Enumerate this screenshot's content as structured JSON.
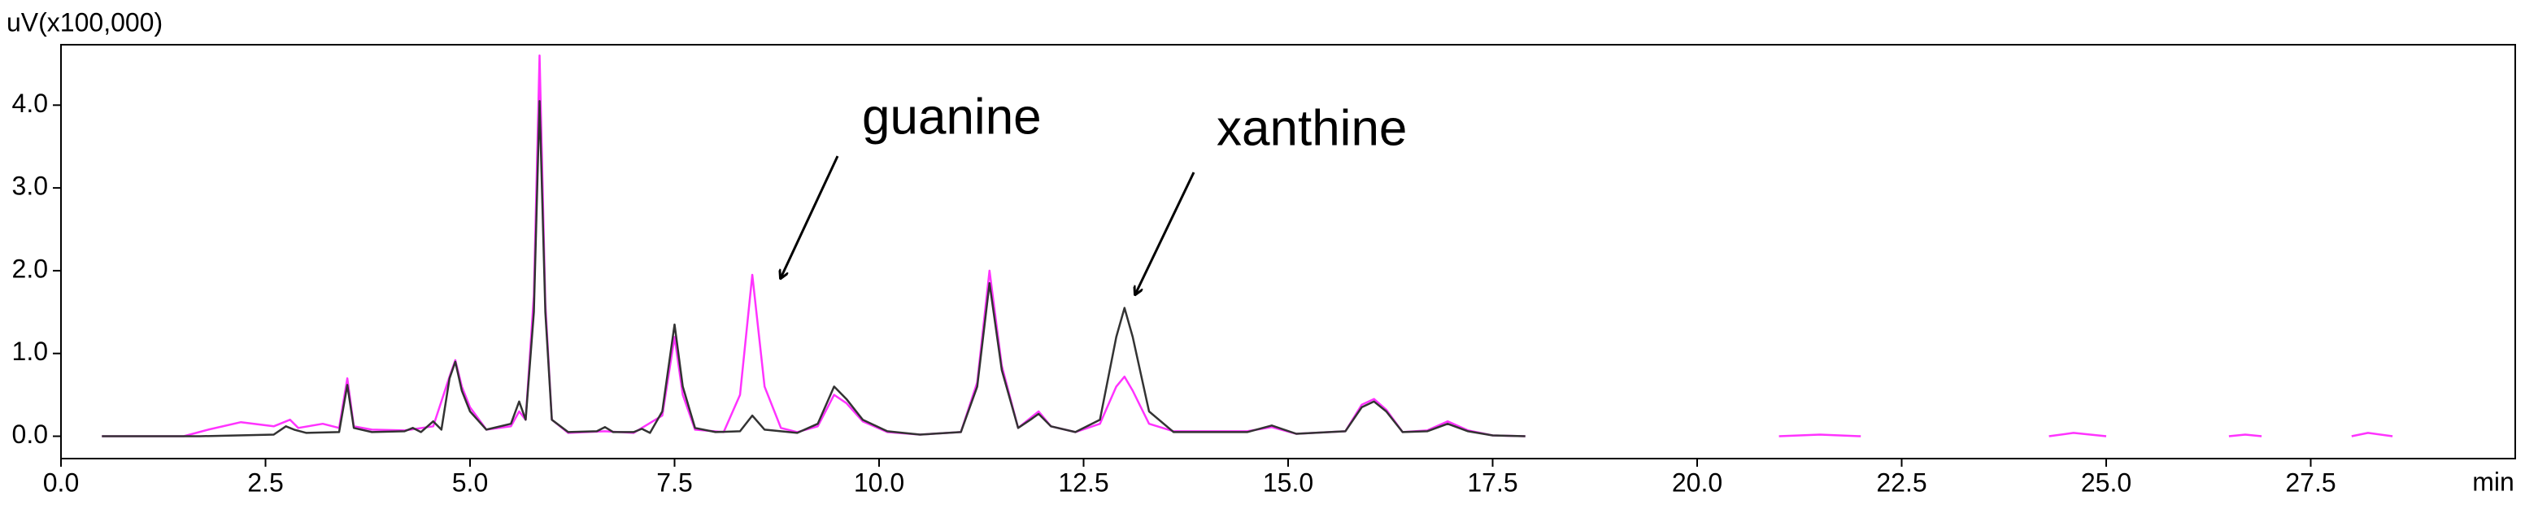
{
  "chart_data": {
    "type": "line",
    "y_label": "uV(x100,000)",
    "x_label": "min",
    "xlim": [
      0,
      30
    ],
    "ylim": [
      -0.27,
      4.73
    ],
    "xticks": [
      {
        "value": 0,
        "label": "0.0"
      },
      2.5,
      {
        "value": 5,
        "label": "5.0"
      },
      7.5,
      {
        "value": 10,
        "label": "10.0"
      },
      12.5,
      {
        "value": 15,
        "label": "15.0"
      },
      17.5,
      {
        "value": 20,
        "label": "20.0"
      },
      22.5,
      {
        "value": 25,
        "label": "25.0"
      },
      27.5
    ],
    "yticks": [
      {
        "value": 0,
        "label": "0.0"
      },
      {
        "value": 1,
        "label": "1.0"
      },
      {
        "value": 2,
        "label": "2.0"
      },
      {
        "value": 3,
        "label": "3.0"
      },
      {
        "value": 4,
        "label": "4.0"
      }
    ],
    "annotations": [
      "guanine",
      "xanthine"
    ],
    "series": [
      {
        "color": "#ff33ff",
        "x": [
          0.5,
          1.5,
          1.8,
          2.2,
          2.6,
          2.8,
          2.9,
          3.2,
          3.4,
          3.5,
          3.58,
          3.8,
          4.2,
          4.55,
          4.75,
          4.82,
          4.9,
          5.0,
          5.2,
          5.5,
          5.6,
          5.68,
          5.78,
          5.85,
          5.92,
          6.0,
          6.2,
          6.65,
          7.0,
          7.35,
          7.5,
          7.6,
          7.75,
          8.1,
          8.3,
          8.45,
          8.6,
          8.8,
          9.0,
          9.25,
          9.45,
          9.6,
          9.8,
          10.1,
          10.5,
          11.0,
          11.2,
          11.35,
          11.5,
          11.7,
          11.85,
          11.95,
          12.1,
          12.4,
          12.7,
          12.9,
          13.0,
          13.1,
          13.3,
          13.6,
          14.5,
          14.8,
          15.1,
          15.7,
          15.9,
          16.05,
          16.2,
          16.4,
          16.7,
          16.95,
          17.2,
          17.5,
          17.9,
          null,
          21.0,
          21.5,
          22.0,
          null,
          24.3,
          24.6,
          25.0,
          null,
          26.5,
          26.7,
          26.9,
          null,
          28.0,
          28.2,
          28.5
        ],
        "values": [
          0,
          0,
          0.08,
          0.17,
          0.12,
          0.2,
          0.1,
          0.15,
          0.1,
          0.7,
          0.12,
          0.08,
          0.07,
          0.12,
          0.72,
          0.92,
          0.6,
          0.35,
          0.08,
          0.12,
          0.3,
          0.2,
          1.7,
          4.6,
          1.6,
          0.2,
          0.04,
          0.06,
          0.04,
          0.25,
          1.2,
          0.5,
          0.08,
          0.05,
          0.5,
          1.95,
          0.6,
          0.1,
          0.05,
          0.12,
          0.5,
          0.4,
          0.18,
          0.05,
          0.02,
          0.05,
          0.65,
          2.0,
          0.85,
          0.1,
          0.22,
          0.3,
          0.12,
          0.05,
          0.15,
          0.6,
          0.72,
          0.55,
          0.15,
          0.06,
          0.06,
          0.11,
          0.03,
          0.06,
          0.38,
          0.45,
          0.32,
          0.05,
          0.07,
          0.18,
          0.07,
          0.01,
          0,
          null,
          0,
          0.02,
          0,
          null,
          0,
          0.04,
          0,
          null,
          0,
          0.02,
          0,
          null,
          0,
          0.04,
          0
        ]
      },
      {
        "color": "#333333",
        "x": [
          0.5,
          1.7,
          2.6,
          2.75,
          2.85,
          3.0,
          3.4,
          3.5,
          3.58,
          3.8,
          4.2,
          4.3,
          4.4,
          4.55,
          4.65,
          4.75,
          4.82,
          4.9,
          5.0,
          5.2,
          5.5,
          5.6,
          5.68,
          5.78,
          5.85,
          5.92,
          6.0,
          6.2,
          6.55,
          6.65,
          6.75,
          7.0,
          7.1,
          7.2,
          7.35,
          7.5,
          7.6,
          7.75,
          8.0,
          8.3,
          8.45,
          8.6,
          9.0,
          9.25,
          9.45,
          9.6,
          9.8,
          10.1,
          10.5,
          11.0,
          11.2,
          11.35,
          11.5,
          11.7,
          11.85,
          11.95,
          12.1,
          12.4,
          12.7,
          12.9,
          13.0,
          13.1,
          13.3,
          13.6,
          14.5,
          14.8,
          15.1,
          15.7,
          15.9,
          16.05,
          16.2,
          16.4,
          16.7,
          16.95,
          17.2,
          17.5,
          17.9
        ],
        "values": [
          0,
          0,
          0.02,
          0.12,
          0.08,
          0.04,
          0.05,
          0.62,
          0.1,
          0.05,
          0.06,
          0.1,
          0.05,
          0.18,
          0.08,
          0.7,
          0.9,
          0.55,
          0.3,
          0.08,
          0.15,
          0.42,
          0.2,
          1.5,
          4.05,
          1.5,
          0.2,
          0.05,
          0.06,
          0.11,
          0.05,
          0.05,
          0.09,
          0.04,
          0.3,
          1.35,
          0.6,
          0.1,
          0.05,
          0.06,
          0.25,
          0.08,
          0.04,
          0.15,
          0.6,
          0.45,
          0.2,
          0.06,
          0.02,
          0.05,
          0.6,
          1.85,
          0.8,
          0.1,
          0.2,
          0.27,
          0.12,
          0.05,
          0.2,
          1.2,
          1.55,
          1.2,
          0.3,
          0.05,
          0.05,
          0.13,
          0.03,
          0.06,
          0.35,
          0.42,
          0.3,
          0.05,
          0.06,
          0.15,
          0.06,
          0.01,
          0
        ]
      }
    ]
  }
}
